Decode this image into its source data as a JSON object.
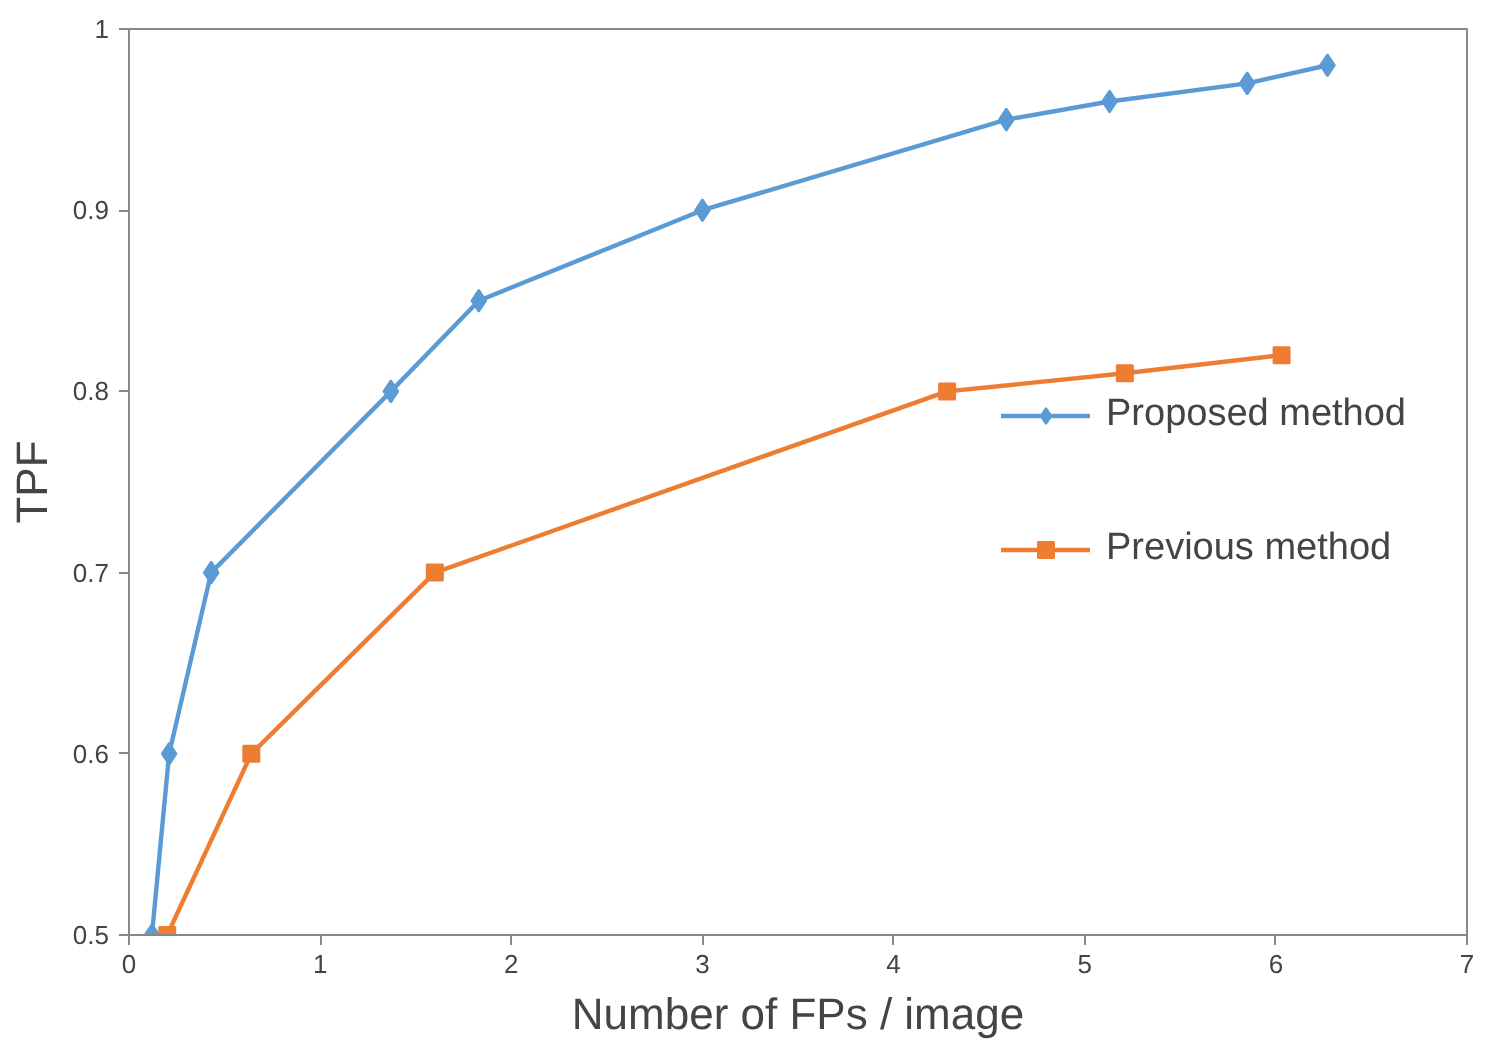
{
  "chart_data": {
    "type": "line",
    "xlabel": "Number of FPs / image",
    "ylabel": "TPF",
    "xlim": [
      0,
      7
    ],
    "xticks": [
      0,
      1,
      2,
      3,
      4,
      5,
      6,
      7
    ],
    "ylim": [
      0.5,
      1
    ],
    "yticks": [
      0.5,
      0.6,
      0.7,
      0.8,
      0.9,
      1
    ],
    "grid": false,
    "legend": "right",
    "line_style": "solid",
    "series": [
      {
        "name": "Proposed method",
        "color": "#5b9bd5",
        "marker": "diamond",
        "x": [
          0.12,
          0.21,
          0.43,
          1.37,
          1.83,
          3.0,
          4.59,
          5.13,
          5.85,
          6.27
        ],
        "values": [
          0.5,
          0.6,
          0.7,
          0.8,
          0.85,
          0.9,
          0.95,
          0.96,
          0.97,
          0.98
        ]
      },
      {
        "name": "Previous method",
        "color": "#ed7d31",
        "marker": "square",
        "x": [
          0.2,
          0.64,
          1.6,
          4.28,
          5.21,
          6.03
        ],
        "values": [
          0.5,
          0.6,
          0.7,
          0.8,
          0.81,
          0.82
        ]
      }
    ]
  }
}
